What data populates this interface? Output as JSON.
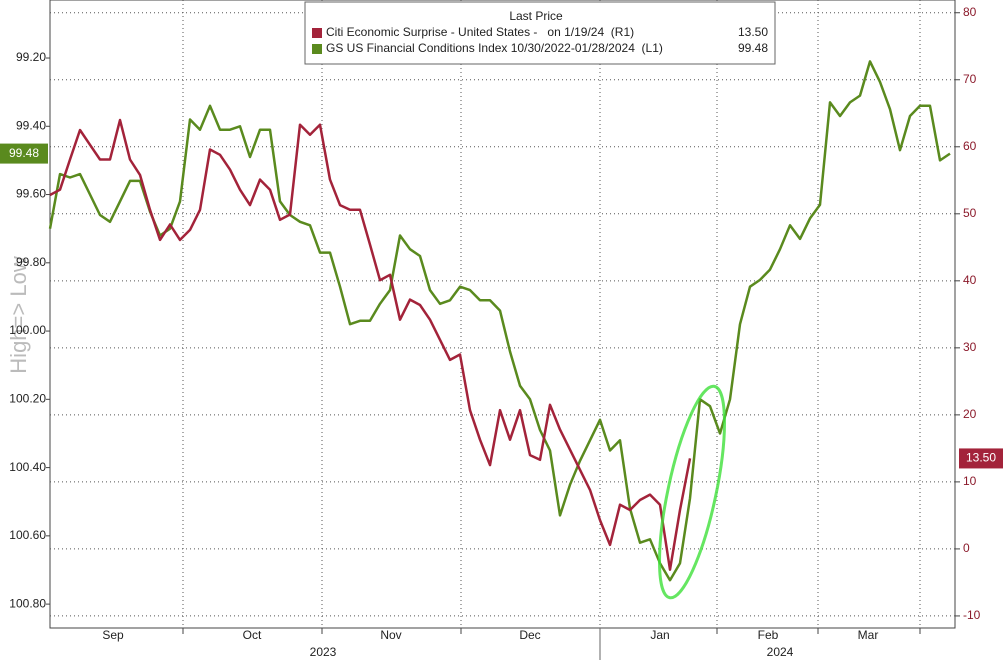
{
  "chart_data": {
    "type": "line",
    "y_axis_label": "High=> Low",
    "legend_title": "Last Price",
    "categories": [
      null,
      null,
      null,
      null,
      null,
      null,
      null,
      null,
      null,
      null,
      null,
      null,
      null,
      null,
      null,
      null,
      null,
      null,
      null,
      null,
      null,
      null,
      null,
      null,
      null,
      null,
      null,
      null,
      null,
      null,
      null,
      null,
      null,
      null,
      null,
      null,
      null,
      null,
      null,
      null,
      null,
      null,
      null,
      null,
      null,
      null,
      null,
      null,
      null,
      null,
      null,
      null,
      null,
      null,
      null,
      null,
      null,
      null,
      null,
      null,
      null,
      null,
      null,
      null,
      null,
      null,
      null,
      null,
      null,
      null,
      null,
      null,
      null,
      null,
      null,
      null,
      null,
      null,
      null,
      null,
      null,
      null,
      null,
      null,
      null,
      null,
      null,
      null,
      null,
      null,
      null
    ],
    "xlim": [
      0,
      90.5
    ],
    "xticks": [
      13.3,
      27.2,
      41.1,
      55,
      66.7,
      76.8,
      87
    ],
    "month_labels": [
      {
        "value": 6.3,
        "label": "Sep"
      },
      {
        "value": 20.2,
        "label": "Oct"
      },
      {
        "value": 34.1,
        "label": "Nov"
      },
      {
        "value": 48,
        "label": "Dec"
      },
      {
        "value": 61,
        "label": "Jan"
      },
      {
        "value": 71.8,
        "label": "Feb"
      },
      {
        "value": 81.8,
        "label": "Mar"
      }
    ],
    "year_labels": [
      {
        "value": 27.3,
        "label": "2023"
      },
      {
        "value": 73,
        "label": "2024"
      }
    ],
    "year_break": 55,
    "ylim": [
      100.87,
      99.03
    ],
    "yticks": [
      {
        "value": 99.2,
        "label": "99.20"
      },
      {
        "value": 99.4,
        "label": "99.40"
      },
      {
        "value": 99.6,
        "label": "99.60"
      },
      {
        "value": 99.8,
        "label": "99.80"
      },
      {
        "value": 100,
        "label": "100.00"
      },
      {
        "value": 100.2,
        "label": "100.20"
      },
      {
        "value": 100.4,
        "label": "100.40"
      },
      {
        "value": 100.6,
        "label": "100.60"
      },
      {
        "value": 100.8,
        "label": "100.80"
      }
    ],
    "y2lim": [
      -11.8,
      81.9
    ],
    "y2ticks": [
      -10,
      0,
      10,
      20,
      30,
      40,
      50,
      60,
      70,
      80
    ],
    "grid": true,
    "series": [
      {
        "name": "Citi Economic Surprise - United States -   on 1/19/24  (R1)",
        "color": "#a3233a",
        "axis": "y2",
        "last_label": "13.50",
        "values": [
          52.8,
          53.6,
          58.1,
          62.5,
          60.3,
          58.1,
          58.1,
          64.0,
          58.1,
          55.8,
          50.6,
          46.1,
          48.4,
          46.1,
          47.6,
          50.6,
          59.6,
          58.8,
          56.6,
          53.6,
          51.3,
          55.1,
          53.6,
          49.1,
          49.9,
          63.3,
          61.8,
          63.3,
          55.1,
          51.3,
          50.6,
          50.6,
          45.4,
          40.1,
          40.9,
          34.2,
          37.2,
          36.4,
          34.2,
          31.2,
          28.2,
          29.0,
          20.7,
          16.3,
          12.5,
          20.7,
          16.3,
          20.7,
          14.0,
          13.3,
          21.5,
          17.8,
          14.8,
          11.8,
          8.8,
          4.3,
          0.6,
          6.6,
          5.8,
          7.3,
          8.1,
          6.6,
          -3.1,
          5.8,
          13.5,
          null,
          null,
          null,
          null,
          null,
          null,
          null,
          null,
          null,
          null,
          null,
          null,
          null,
          null,
          null,
          null,
          null,
          null,
          null,
          null,
          null,
          null,
          null,
          null,
          null,
          null
        ]
      },
      {
        "name": "GS US Financial Conditions Index 10/30/2022-01/28/2024  (L1)",
        "color": "#5a8a1e",
        "axis": "y",
        "last_label": "99.48",
        "values": [
          99.7,
          99.54,
          99.55,
          99.54,
          99.6,
          99.66,
          99.68,
          99.62,
          99.56,
          99.56,
          99.65,
          99.72,
          99.7,
          99.62,
          99.38,
          99.41,
          99.34,
          99.41,
          99.41,
          99.4,
          99.49,
          99.41,
          99.41,
          99.62,
          99.66,
          99.68,
          99.69,
          99.77,
          99.77,
          99.87,
          99.98,
          99.97,
          99.97,
          99.92,
          99.88,
          99.72,
          99.76,
          99.78,
          99.88,
          99.92,
          99.91,
          99.87,
          99.88,
          99.91,
          99.91,
          99.94,
          100.06,
          100.16,
          100.2,
          100.29,
          100.35,
          100.54,
          100.45,
          100.38,
          100.32,
          100.26,
          100.35,
          100.32,
          100.52,
          100.62,
          100.61,
          100.68,
          100.73,
          100.68,
          100.49,
          100.2,
          100.22,
          100.3,
          100.2,
          99.98,
          99.87,
          99.85,
          99.82,
          99.76,
          99.69,
          99.73,
          99.67,
          99.63,
          99.33,
          99.37,
          99.33,
          99.31,
          99.21,
          99.27,
          99.35,
          99.47,
          99.37,
          99.34,
          99.34,
          99.5,
          99.48
        ]
      }
    ]
  }
}
